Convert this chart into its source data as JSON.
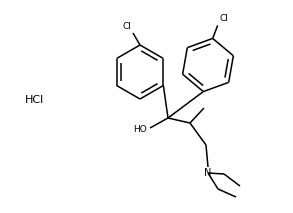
{
  "bg_color": "#ffffff",
  "line_color": "#000000",
  "text_color": "#000000",
  "hcl_label": "HCl",
  "ring_r": 0.088,
  "lw": 1.1
}
